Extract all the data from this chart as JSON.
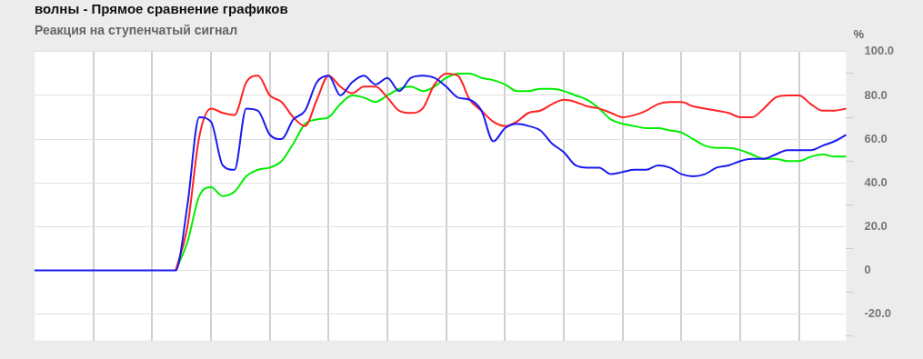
{
  "chart_data": {
    "type": "line",
    "title": "волны - Прямое сравнение графиков",
    "subtitle": "Реакция на ступенчатый сигнал",
    "ylabel": "%",
    "categories": [
      null,
      null,
      null,
      null,
      null,
      null,
      null,
      null,
      null,
      null,
      null,
      null,
      null,
      null,
      null,
      null,
      null,
      null,
      null,
      null,
      null,
      null,
      null,
      null,
      null,
      null,
      null,
      null,
      null,
      null,
      null,
      null,
      null,
      null,
      null,
      null,
      null,
      null,
      null,
      null,
      null,
      null,
      null,
      null,
      null,
      null,
      null,
      null,
      null,
      null,
      null,
      null,
      null,
      null,
      null,
      null,
      null,
      null,
      null,
      null,
      null,
      null,
      null,
      null,
      null,
      null,
      null,
      null,
      null,
      null
    ],
    "series": [
      {
        "color": "#00ee00",
        "values": [
          null,
          null,
          null,
          null,
          null,
          null,
          null,
          null,
          null,
          null,
          null,
          null,
          0,
          13,
          34,
          38,
          34,
          36,
          43,
          46,
          47,
          50,
          58,
          67,
          69,
          70,
          76,
          80,
          79,
          77,
          80,
          83,
          84,
          82,
          84,
          88,
          90,
          90,
          88,
          87,
          85,
          82,
          82,
          83,
          83,
          82,
          80,
          78,
          74,
          69,
          67,
          66,
          65,
          65,
          64,
          63,
          60,
          57,
          56,
          56,
          55,
          53,
          51,
          51,
          50,
          50,
          52,
          53,
          52,
          52
        ]
      },
      {
        "color": "#ff2222",
        "values": [
          null,
          null,
          null,
          null,
          null,
          null,
          null,
          null,
          null,
          null,
          null,
          null,
          0,
          20,
          61,
          74,
          72,
          71,
          86,
          89,
          80,
          77,
          70,
          66,
          78,
          89,
          84,
          81,
          84,
          84,
          79,
          73,
          72,
          74,
          85,
          90,
          89,
          78,
          73,
          68,
          66,
          68,
          72,
          73,
          76,
          78,
          77,
          75,
          74,
          72,
          70,
          71,
          73,
          76,
          77,
          77,
          75,
          74,
          73,
          72,
          70,
          70,
          74,
          79,
          80,
          80,
          76,
          73,
          73,
          74
        ]
      },
      {
        "color": "#1a1aee",
        "values": [
          0,
          0,
          0,
          0,
          0,
          0,
          0,
          0,
          0,
          0,
          0,
          0,
          0,
          30,
          70,
          68,
          48,
          46,
          74,
          73,
          62,
          60,
          69,
          73,
          86,
          89,
          80,
          86,
          89,
          85,
          88,
          82,
          88,
          89,
          88,
          84,
          79,
          78,
          73,
          59,
          65,
          67,
          66,
          64,
          58,
          54,
          48,
          47,
          47,
          44,
          45,
          46,
          46,
          48,
          47,
          44,
          43,
          44,
          47,
          48,
          50,
          51,
          51,
          53,
          55,
          55,
          55,
          57,
          59,
          62
        ]
      }
    ],
    "ylim": [
      -32,
      100
    ],
    "yticks": [
      {
        "value": -30,
        "label": null
      },
      {
        "value": -20,
        "label": "-20.0"
      },
      {
        "value": -10,
        "label": null
      },
      0,
      {
        "value": 10,
        "label": null
      },
      {
        "value": 20,
        "label": "20.0"
      },
      {
        "value": 30,
        "label": null
      },
      {
        "value": 40,
        "label": "40.0"
      },
      {
        "value": 50,
        "label": null
      },
      {
        "value": 60,
        "label": "60.0"
      },
      {
        "value": 70,
        "label": null
      },
      {
        "value": 80,
        "label": "80.0"
      },
      {
        "value": 90,
        "label": null
      },
      {
        "value": 100,
        "label": "100.0"
      }
    ],
    "grid": true,
    "legend": false,
    "marker": "none",
    "line_style": "solid"
  }
}
